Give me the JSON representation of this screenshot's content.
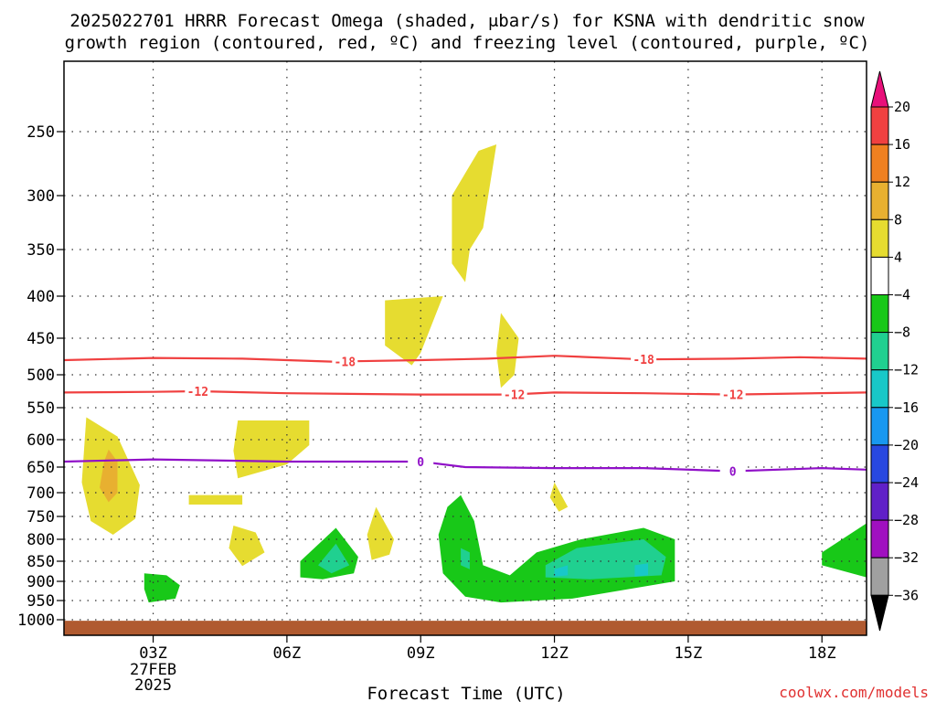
{
  "title": {
    "line1": "2025022701 HRRR Forecast Omega (shaded, μbar/s) for KSNA with dendritic snow",
    "line2": "growth region (contoured, red, ºC) and freezing level (contoured, purple, ºC)"
  },
  "credit": "coolwx.com/models",
  "chart_data": {
    "type": "heatmap",
    "xlabel": "Forecast Time (UTC)",
    "ylabel": "",
    "xlim": [
      1,
      19
    ],
    "ylim": [
      200,
      1030
    ],
    "y_scale": "pressure",
    "x_ticks": [
      {
        "x": 3,
        "label": "03Z",
        "sub1": "27FEB",
        "sub2": "2025"
      },
      {
        "x": 6,
        "label": "06Z"
      },
      {
        "x": 9,
        "label": "09Z"
      },
      {
        "x": 12,
        "label": "12Z"
      },
      {
        "x": 15,
        "label": "15Z"
      },
      {
        "x": 18,
        "label": "18Z"
      }
    ],
    "y_ticks": [
      250,
      300,
      350,
      400,
      450,
      500,
      550,
      600,
      650,
      700,
      750,
      800,
      850,
      900,
      950,
      1000
    ],
    "grid": true,
    "colorbar": {
      "labels": [
        "20",
        "16",
        "12",
        "8",
        "4",
        "−4",
        "−8",
        "−12",
        "−16",
        "−20",
        "−24",
        "−28",
        "−32",
        "−36"
      ],
      "colors": [
        "#e8107a",
        "#f04040",
        "#ef8020",
        "#e8b030",
        "#e6dc30",
        "#ffffff",
        "#18c818",
        "#20d090",
        "#18c8c8",
        "#1898f0",
        "#2848e0",
        "#6020c8",
        "#a010c0",
        "#a0a0a0",
        "#000000"
      ]
    },
    "omega_regions": [
      {
        "value": 4,
        "color": "#e6dc30",
        "points": [
          [
            1.5,
            565
          ],
          [
            2.2,
            595
          ],
          [
            2.7,
            685
          ],
          [
            2.6,
            755
          ],
          [
            2.1,
            790
          ],
          [
            1.6,
            760
          ],
          [
            1.4,
            680
          ]
        ]
      },
      {
        "value": 8,
        "color": "#e8b030",
        "points": [
          [
            2.0,
            618
          ],
          [
            2.2,
            640
          ],
          [
            2.2,
            700
          ],
          [
            2.0,
            720
          ],
          [
            1.8,
            690
          ],
          [
            1.9,
            640
          ]
        ]
      },
      {
        "value": 4,
        "color": "#e6dc30",
        "points": [
          [
            3.8,
            705
          ],
          [
            5.0,
            705
          ],
          [
            5.0,
            725
          ],
          [
            3.8,
            725
          ]
        ]
      },
      {
        "value": 4,
        "color": "#e6dc30",
        "points": [
          [
            4.9,
            570
          ],
          [
            6.5,
            570
          ],
          [
            6.5,
            610
          ],
          [
            6.0,
            645
          ],
          [
            4.9,
            672
          ],
          [
            4.8,
            620
          ]
        ]
      },
      {
        "value": 4,
        "color": "#e6dc30",
        "points": [
          [
            4.8,
            770
          ],
          [
            5.3,
            785
          ],
          [
            5.5,
            830
          ],
          [
            5.0,
            862
          ],
          [
            4.7,
            820
          ]
        ]
      },
      {
        "value": 4,
        "color": "#e6dc30",
        "points": [
          [
            8.0,
            730
          ],
          [
            8.4,
            800
          ],
          [
            8.3,
            835
          ],
          [
            7.9,
            847
          ],
          [
            7.8,
            790
          ]
        ]
      },
      {
        "value": 4,
        "color": "#e6dc30",
        "points": [
          [
            8.2,
            405
          ],
          [
            9.5,
            400
          ],
          [
            9.0,
            470
          ],
          [
            8.8,
            487
          ],
          [
            8.2,
            460
          ]
        ]
      },
      {
        "value": 4,
        "color": "#e6dc30",
        "points": [
          [
            10.3,
            265
          ],
          [
            10.7,
            260
          ],
          [
            10.4,
            330
          ],
          [
            10.1,
            350
          ],
          [
            10.0,
            385
          ],
          [
            9.7,
            365
          ],
          [
            9.7,
            300
          ]
        ]
      },
      {
        "value": 4,
        "color": "#e6dc30",
        "points": [
          [
            10.8,
            420
          ],
          [
            11.2,
            450
          ],
          [
            11.1,
            500
          ],
          [
            10.8,
            520
          ],
          [
            10.7,
            470
          ]
        ]
      },
      {
        "value": 4,
        "color": "#e6dc30",
        "points": [
          [
            12.0,
            680
          ],
          [
            12.3,
            730
          ],
          [
            12.1,
            740
          ],
          [
            11.9,
            710
          ]
        ]
      },
      {
        "value": -4,
        "color": "#18c818",
        "points": [
          [
            2.8,
            880
          ],
          [
            3.3,
            885
          ],
          [
            3.6,
            910
          ],
          [
            3.5,
            945
          ],
          [
            2.9,
            955
          ],
          [
            2.8,
            920
          ]
        ]
      },
      {
        "value": -4,
        "color": "#18c818",
        "points": [
          [
            6.3,
            850
          ],
          [
            7.1,
            775
          ],
          [
            7.6,
            840
          ],
          [
            7.5,
            880
          ],
          [
            6.8,
            895
          ],
          [
            6.3,
            890
          ]
        ]
      },
      {
        "value": -4,
        "color": "#18c818",
        "points": [
          [
            9.6,
            730
          ],
          [
            9.9,
            705
          ],
          [
            10.2,
            760
          ],
          [
            10.4,
            860
          ],
          [
            11.0,
            885
          ],
          [
            11.6,
            830
          ],
          [
            12.6,
            800
          ],
          [
            14.0,
            775
          ],
          [
            14.7,
            800
          ],
          [
            14.7,
            900
          ],
          [
            12.4,
            945
          ],
          [
            10.8,
            955
          ],
          [
            10.0,
            940
          ],
          [
            9.5,
            880
          ],
          [
            9.4,
            790
          ]
        ]
      },
      {
        "value": -4,
        "color": "#18c818",
        "points": [
          [
            18.0,
            830
          ],
          [
            19.0,
            765
          ],
          [
            19.0,
            890
          ],
          [
            18.0,
            860
          ]
        ]
      },
      {
        "value": -8,
        "color": "#20d090",
        "points": [
          [
            6.7,
            860
          ],
          [
            7.1,
            810
          ],
          [
            7.4,
            860
          ],
          [
            7.0,
            880
          ]
        ]
      },
      {
        "value": -8,
        "color": "#20d090",
        "points": [
          [
            11.8,
            860
          ],
          [
            12.5,
            820
          ],
          [
            14.0,
            800
          ],
          [
            14.5,
            840
          ],
          [
            14.4,
            885
          ],
          [
            12.8,
            895
          ],
          [
            11.8,
            890
          ]
        ]
      },
      {
        "value": -8,
        "color": "#20d090",
        "points": [
          [
            9.9,
            820
          ],
          [
            10.1,
            830
          ],
          [
            10.1,
            870
          ],
          [
            9.9,
            860
          ]
        ]
      },
      {
        "value": -12,
        "color": "#18c8c8",
        "points": [
          [
            12.0,
            870
          ],
          [
            12.3,
            860
          ],
          [
            12.3,
            885
          ],
          [
            12.0,
            888
          ]
        ]
      },
      {
        "value": -12,
        "color": "#18c8c8",
        "points": [
          [
            13.8,
            860
          ],
          [
            14.1,
            855
          ],
          [
            14.1,
            885
          ],
          [
            13.8,
            888
          ]
        ]
      }
    ],
    "isotherm_contours": [
      {
        "label": "-18",
        "color": "#f04040",
        "points": [
          [
            1,
            480
          ],
          [
            3,
            477
          ],
          [
            5,
            478
          ],
          [
            7,
            482
          ],
          [
            9,
            480
          ],
          [
            10.5,
            478
          ],
          [
            12,
            474
          ],
          [
            14,
            479
          ],
          [
            16,
            478
          ],
          [
            17.5,
            476
          ],
          [
            19,
            478
          ]
        ],
        "label_x": [
          7.3,
          14.0
        ]
      },
      {
        "label": "-12",
        "color": "#f04040",
        "points": [
          [
            1,
            527
          ],
          [
            3,
            526
          ],
          [
            4,
            525
          ],
          [
            6,
            528
          ],
          [
            9,
            530
          ],
          [
            11,
            530
          ],
          [
            12,
            527
          ],
          [
            14,
            528
          ],
          [
            16,
            530
          ],
          [
            19,
            527
          ]
        ],
        "label_x": [
          4.0,
          11.1,
          16.0
        ]
      },
      {
        "label": "0",
        "color": "#9010c8",
        "points": [
          [
            1,
            640
          ],
          [
            3,
            636
          ],
          [
            6,
            640
          ],
          [
            9,
            640
          ],
          [
            10,
            650
          ],
          [
            12,
            652
          ],
          [
            14,
            652
          ],
          [
            16,
            658
          ],
          [
            18,
            652
          ],
          [
            19,
            655
          ]
        ],
        "label_x": [
          9.0,
          16.0
        ]
      }
    ],
    "ground_band": {
      "from": 1002,
      "to": 1030,
      "color": "#b05a30"
    }
  }
}
